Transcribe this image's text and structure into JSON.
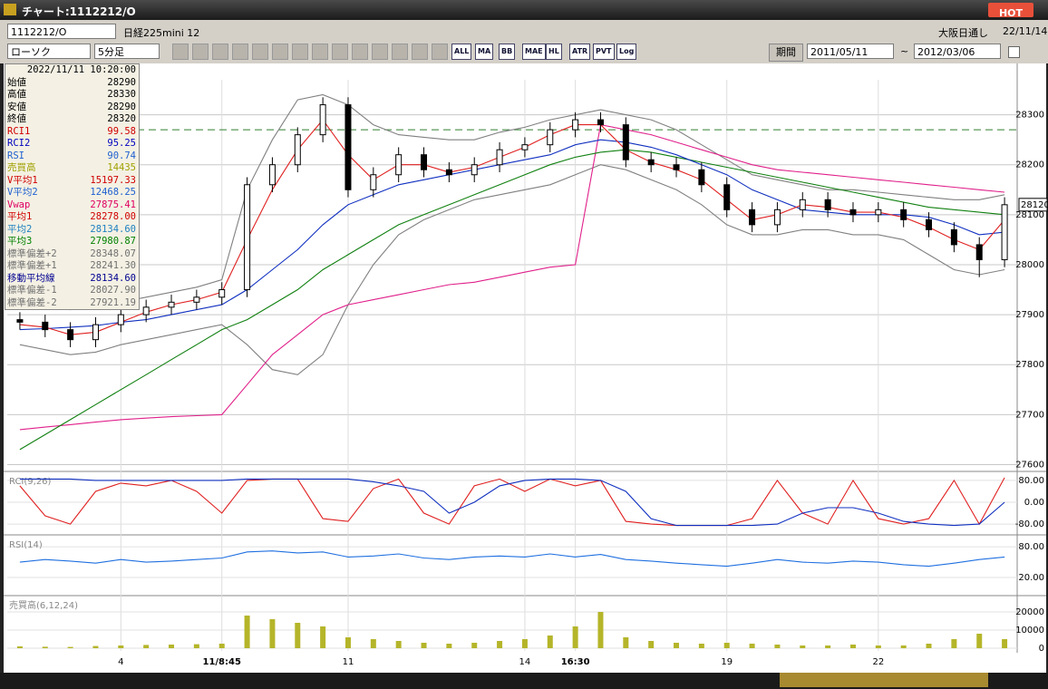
{
  "window": {
    "title": "チャート:1112212/O",
    "hot": "HOT"
  },
  "toolbar": {
    "symbol": "1112212/O",
    "name": "日経225mini 12",
    "market": "大阪日通し",
    "date": "22/11/14",
    "chart_kind": "ローソク",
    "interval": "5分足",
    "buttons": [
      "ALL",
      "MA",
      "BB",
      "MAE",
      "HL",
      "ATR",
      "PVT",
      "Log"
    ],
    "period": "期間",
    "from": "2011/05/11",
    "tilde": "~",
    "to": "2012/03/06"
  },
  "info_panel": {
    "datetime": "2022/11/11 10:20:00",
    "rows": [
      {
        "label": "始値",
        "value": "28290",
        "color": "#000000"
      },
      {
        "label": "高値",
        "value": "28330",
        "color": "#000000"
      },
      {
        "label": "安値",
        "value": "28290",
        "color": "#000000"
      },
      {
        "label": "終値",
        "value": "28320",
        "color": "#000000"
      },
      {
        "label": "RCI1",
        "value": "99.58",
        "color": "#d00000"
      },
      {
        "label": "RCI2",
        "value": "95.25",
        "color": "#0000c0"
      },
      {
        "label": "RSI",
        "value": "90.74",
        "color": "#2060d0"
      },
      {
        "label": "売買高",
        "value": "14435",
        "color": "#a0a000"
      },
      {
        "label": "V平均1",
        "value": "15197.33",
        "color": "#d00000"
      },
      {
        "label": "V平均2",
        "value": "12468.25",
        "color": "#2060d0"
      },
      {
        "label": "Vwap",
        "value": "27875.41",
        "color": "#e00060"
      },
      {
        "label": "平均1",
        "value": "28278.00",
        "color": "#d00000"
      },
      {
        "label": "平均2",
        "value": "28134.60",
        "color": "#2080c0"
      },
      {
        "label": "平均3",
        "value": "27980.87",
        "color": "#008000"
      },
      {
        "label": "標準偏差+2",
        "value": "28348.07",
        "color": "#707070"
      },
      {
        "label": "標準偏差+1",
        "value": "28241.30",
        "color": "#707070"
      },
      {
        "label": "移動平均線",
        "value": "28134.60",
        "color": "#000090"
      },
      {
        "label": "標準偏差-1",
        "value": "28027.90",
        "color": "#707070"
      },
      {
        "label": "標準偏差-2",
        "value": "27921.19",
        "color": "#707070"
      }
    ]
  },
  "chart_data": [
    {
      "type": "candlestick",
      "categories": [
        null,
        null,
        null,
        null,
        "4",
        null,
        null,
        null,
        "11/8:45",
        null,
        null,
        null,
        null,
        "11",
        null,
        null,
        null,
        null,
        null,
        null,
        "14",
        null,
        "16:30",
        null,
        null,
        null,
        null,
        null,
        "19",
        null,
        null,
        null,
        null,
        null,
        "22",
        null,
        null,
        null,
        null,
        null
      ],
      "open": [
        27890,
        27885,
        27870,
        27850,
        27880,
        27900,
        27915,
        27925,
        27935,
        27950,
        28160,
        28200,
        28260,
        28320,
        28150,
        28180,
        28220,
        28190,
        28180,
        28200,
        28230,
        28240,
        28270,
        28290,
        28280,
        28210,
        28200,
        28190,
        28160,
        28110,
        28080,
        28110,
        28130,
        28110,
        28100,
        28110,
        28090,
        28070,
        28040,
        28010
      ],
      "high": [
        27905,
        27900,
        27885,
        27895,
        27915,
        27930,
        27940,
        27950,
        27965,
        28175,
        28215,
        28275,
        28335,
        28335,
        28195,
        28235,
        28235,
        28205,
        28215,
        28245,
        28255,
        28285,
        28305,
        28305,
        28295,
        28225,
        28215,
        28205,
        28175,
        28125,
        28125,
        28145,
        28145,
        28125,
        28125,
        28125,
        28105,
        28085,
        28055,
        28135
      ],
      "low": [
        27870,
        27855,
        27835,
        27835,
        27865,
        27885,
        27900,
        27910,
        27920,
        27935,
        28145,
        28185,
        28245,
        28135,
        28135,
        28165,
        28175,
        28165,
        28165,
        28185,
        28215,
        28225,
        28255,
        28265,
        28195,
        28185,
        28175,
        28145,
        28095,
        28065,
        28065,
        28095,
        28095,
        28085,
        28085,
        28075,
        28055,
        28025,
        27975,
        27995
      ],
      "close": [
        27885,
        27870,
        27850,
        27880,
        27900,
        27915,
        27925,
        27935,
        27950,
        28160,
        28200,
        28260,
        28320,
        28150,
        28180,
        28220,
        28190,
        28180,
        28200,
        28230,
        28240,
        28270,
        28290,
        28280,
        28210,
        28200,
        28190,
        28160,
        28110,
        28080,
        28110,
        28130,
        28110,
        28100,
        28110,
        28090,
        28070,
        28040,
        28010,
        28120
      ],
      "series": [
        {
          "color": "#808080",
          "values": [
            27920,
            27915,
            27910,
            27915,
            27925,
            27935,
            27945,
            27955,
            27970,
            28150,
            28250,
            28330,
            28340,
            28320,
            28280,
            28260,
            28255,
            28250,
            28250,
            28265,
            28275,
            28290,
            28300,
            28310,
            28300,
            28290,
            28270,
            28240,
            28210,
            28180,
            28170,
            28160,
            28150,
            28150,
            28145,
            28140,
            28135,
            28130,
            28130,
            28140
          ]
        },
        {
          "color": "#808080",
          "values": [
            27840,
            27830,
            27820,
            27825,
            27840,
            27850,
            27860,
            27870,
            27880,
            27840,
            27790,
            27780,
            27820,
            27920,
            28000,
            28060,
            28090,
            28110,
            28130,
            28140,
            28150,
            28160,
            28180,
            28200,
            28190,
            28170,
            28150,
            28120,
            28080,
            28060,
            28060,
            28070,
            28070,
            28060,
            28060,
            28050,
            28020,
            27990,
            27980,
            27990
          ]
        },
        {
          "color": "#e0208a",
          "values": [
            27670,
            27675,
            27680,
            27685,
            27690,
            27693,
            27696,
            27698,
            27700,
            27760,
            27820,
            27860,
            27900,
            27920,
            27930,
            27940,
            27950,
            27960,
            27965,
            27975,
            27985,
            27995,
            28000,
            28280,
            28270,
            28260,
            28245,
            28230,
            28215,
            28200,
            28190,
            28185,
            28180,
            28175,
            28170,
            28165,
            28160,
            28155,
            28150,
            28145
          ]
        },
        {
          "color": "#108010",
          "values": [
            27630,
            27660,
            27690,
            27720,
            27750,
            27780,
            27810,
            27840,
            27870,
            27890,
            27920,
            27950,
            27990,
            28020,
            28050,
            28080,
            28100,
            28120,
            28140,
            28160,
            28180,
            28200,
            28215,
            28225,
            28230,
            28225,
            28215,
            28205,
            28195,
            28185,
            28175,
            28165,
            28155,
            28145,
            28135,
            28125,
            28115,
            28110,
            28105,
            28100
          ]
        },
        {
          "color": "#1030c0",
          "values": [
            27870,
            27872,
            27875,
            27878,
            27885,
            27890,
            27900,
            27910,
            27920,
            27950,
            27990,
            28030,
            28080,
            28120,
            28140,
            28160,
            28170,
            28180,
            28190,
            28200,
            28210,
            28220,
            28240,
            28250,
            28245,
            28235,
            28220,
            28200,
            28180,
            28150,
            28130,
            28110,
            28105,
            28100,
            28100,
            28100,
            28095,
            28080,
            28060,
            28065
          ]
        },
        {
          "color": "#e02020",
          "values": [
            27880,
            27875,
            27860,
            27865,
            27885,
            27905,
            27920,
            27930,
            27945,
            28050,
            28150,
            28230,
            28290,
            28220,
            28170,
            28200,
            28200,
            28185,
            28195,
            28215,
            28235,
            28260,
            28280,
            28280,
            28230,
            28205,
            28190,
            28170,
            28130,
            28090,
            28100,
            28120,
            28115,
            28105,
            28105,
            28095,
            28075,
            28050,
            28030,
            28090
          ]
        }
      ],
      "reference_line": 28270,
      "last_price": 28120,
      "ylim": [
        27590,
        28370
      ],
      "yticks": [
        27600,
        27700,
        27800,
        27900,
        28000,
        28100,
        28200,
        28300
      ],
      "grid": true
    },
    {
      "type": "line",
      "title": "RCI(9,26)",
      "series": [
        {
          "color": "#e02020",
          "values": [
            60,
            -50,
            -80,
            40,
            70,
            60,
            80,
            40,
            -40,
            80,
            85,
            85,
            -60,
            -70,
            50,
            85,
            -40,
            -80,
            60,
            85,
            40,
            85,
            60,
            80,
            -70,
            -80,
            -85,
            -85,
            -85,
            -60,
            80,
            -40,
            -80,
            80,
            -60,
            -80,
            -60,
            80,
            -80,
            90
          ]
        },
        {
          "color": "#1030c0",
          "values": [
            85,
            85,
            85,
            80,
            80,
            80,
            80,
            80,
            80,
            85,
            85,
            85,
            85,
            85,
            75,
            60,
            40,
            -40,
            0,
            60,
            80,
            85,
            85,
            80,
            40,
            -60,
            -85,
            -85,
            -85,
            -85,
            -80,
            -40,
            -20,
            -20,
            -40,
            -70,
            -80,
            -85,
            -80,
            0
          ]
        }
      ],
      "ylim": [
        -113,
        103
      ],
      "yticks": [
        {
          "value": 80,
          "label": "80.00"
        },
        {
          "value": 0,
          "label": "0.00"
        },
        {
          "value": -80,
          "label": "-80.00"
        }
      ]
    },
    {
      "type": "line",
      "title": "RSI(14)",
      "series": [
        {
          "color": "#2070e0",
          "values": [
            50,
            55,
            52,
            48,
            55,
            50,
            52,
            55,
            58,
            70,
            72,
            68,
            70,
            60,
            62,
            66,
            58,
            55,
            60,
            62,
            60,
            66,
            60,
            65,
            55,
            52,
            48,
            45,
            42,
            48,
            55,
            50,
            48,
            52,
            50,
            45,
            42,
            48,
            55,
            60
          ]
        }
      ],
      "ylim": [
        -12,
        98
      ],
      "yticks": [
        {
          "value": 80,
          "label": "80.00"
        },
        {
          "value": 20,
          "label": "20.00"
        }
      ]
    },
    {
      "type": "bar",
      "title": "売買高(6,12,24)",
      "color": "#b5b52a",
      "values": [
        1000,
        800,
        700,
        1200,
        1500,
        1800,
        2000,
        2200,
        2500,
        18000,
        16000,
        14000,
        12000,
        6000,
        5000,
        4000,
        3000,
        2500,
        3000,
        4000,
        5000,
        7000,
        12000,
        20000,
        6000,
        4000,
        3000,
        2500,
        3000,
        2500,
        2000,
        1500,
        1500,
        2000,
        1500,
        1500,
        2500,
        5000,
        8000,
        5000
      ],
      "ylim": [
        -1500,
        27500
      ],
      "yticks": [
        20000,
        10000,
        0
      ]
    }
  ]
}
